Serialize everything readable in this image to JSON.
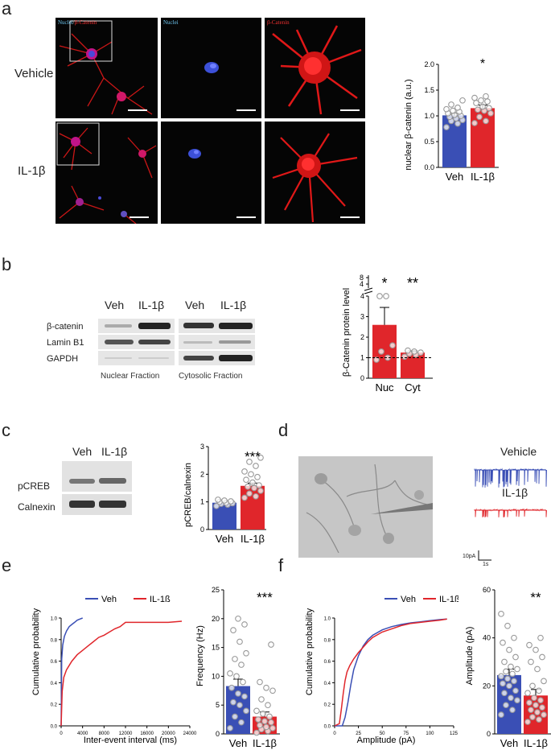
{
  "panels": {
    "a": "a",
    "b": "b",
    "c": "c",
    "d": "d",
    "e": "e",
    "f": "f"
  },
  "panel_a": {
    "row_labels": [
      "Vehicle",
      "IL-1β"
    ],
    "channel_labels": {
      "merge_nuclei": "Nuclei",
      "merge_sep": "/",
      "merge_cat": "β-Catenin",
      "nuclei": "Nuclei",
      "catenin": "β-Catenin"
    }
  },
  "panel_b": {
    "lane_labels": [
      "Veh",
      "IL-1β",
      "Veh",
      "IL-1β"
    ],
    "row_labels": [
      "β-catenin",
      "Lamin B1",
      "GAPDH"
    ],
    "fraction_labels": [
      "Nuclear Fraction",
      "Cytosolic Fraction"
    ]
  },
  "panel_c": {
    "lane_labels": [
      "Veh",
      "IL-1β"
    ],
    "row_labels": [
      "pCREB",
      "Calnexin"
    ]
  },
  "panel_d": {
    "trace_labels": [
      "Vehicle",
      "IL-1β"
    ],
    "scale_y": "10pA",
    "scale_x": "1s"
  },
  "colors": {
    "veh": "#3a4fb5",
    "il1b": "#e0262b",
    "red_signal": "#e01818",
    "blue_signal": "#3c50d8"
  },
  "chart_data": [
    {
      "id": "a_bar",
      "type": "bar",
      "title": "",
      "xlabel": "",
      "ylabel": "nuclear β-catenin (a.u.)",
      "categories": [
        "Veh",
        "IL-1β"
      ],
      "values": [
        1.01,
        1.15
      ],
      "errors": [
        0.04,
        0.06
      ],
      "ylim": [
        0,
        2.0
      ],
      "yticks": [
        "0.0",
        "0.5",
        "1.0",
        "1.5",
        "2.0"
      ],
      "significance": "*",
      "points": [
        [
          0.78,
          0.85,
          0.9,
          0.92,
          0.95,
          0.98,
          1.0,
          1.02,
          1.05,
          1.08,
          1.1,
          1.13,
          1.16,
          1.22,
          1.3
        ],
        [
          0.86,
          0.9,
          0.98,
          1.05,
          1.1,
          1.12,
          1.15,
          1.18,
          1.25,
          1.28,
          1.3,
          1.35,
          1.38
        ]
      ]
    },
    {
      "id": "b_bar",
      "type": "bar",
      "title": "",
      "xlabel": "",
      "ylabel": "β-Catenin protein level",
      "categories": [
        "Nuc",
        "Cyt"
      ],
      "values": [
        2.6,
        1.25
      ],
      "errors": [
        0.85,
        0.08
      ],
      "ylim": [
        0,
        4
      ],
      "yticks": [
        "0",
        "1",
        "2",
        "3",
        "4"
      ],
      "ybreak_ticks": [
        "8",
        "4"
      ],
      "reference_line": 1,
      "significance": [
        "*",
        "**"
      ],
      "points": [
        [
          0.9,
          1.0,
          1.3,
          1.6,
          4.2,
          4.5
        ],
        [
          1.05,
          1.15,
          1.2,
          1.25,
          1.3,
          1.35
        ]
      ]
    },
    {
      "id": "c_bar",
      "type": "bar",
      "title": "",
      "xlabel": "",
      "ylabel": "pCREB/calnexin",
      "categories": [
        "Veh",
        "IL-1β"
      ],
      "values": [
        0.97,
        1.58
      ],
      "errors": [
        0.03,
        0.1
      ],
      "ylim": [
        0,
        3
      ],
      "yticks": [
        "0",
        "1",
        "2",
        "3"
      ],
      "significance": "***",
      "points": [
        [
          0.85,
          0.9,
          0.93,
          0.95,
          0.97,
          1.0,
          1.02,
          1.05,
          1.08
        ],
        [
          1.15,
          1.2,
          1.3,
          1.4,
          1.5,
          1.55,
          1.6,
          1.7,
          1.8,
          1.9,
          2.0,
          2.1,
          2.3,
          2.45,
          2.6
        ]
      ]
    },
    {
      "id": "e_cum",
      "type": "line",
      "title": "",
      "xlabel": "Inter-event interval (ms)",
      "ylabel": "Cumulative probability",
      "xlim": [
        0,
        24000
      ],
      "ylim": [
        0,
        1.0
      ],
      "xticks": [
        "0",
        "4000",
        "8000",
        "12000",
        "16000",
        "20000",
        "24000"
      ],
      "yticks": [
        "0.0",
        "0.2",
        "0.4",
        "0.6",
        "0.8",
        "1.0"
      ],
      "series": [
        {
          "name": "Veh",
          "x": [
            0,
            100,
            300,
            600,
            1000,
            1500,
            2000,
            2500,
            3000,
            3500,
            4000
          ],
          "y": [
            0,
            0.62,
            0.75,
            0.83,
            0.88,
            0.92,
            0.94,
            0.96,
            0.98,
            0.99,
            1.0
          ]
        },
        {
          "name": "IL-1ß",
          "x": [
            0,
            200,
            500,
            1000,
            2000,
            3000,
            4000,
            5000,
            6000,
            7000,
            8000,
            9000,
            10000,
            11000,
            12000,
            13000,
            14000,
            16000,
            18000,
            20000,
            22500
          ],
          "y": [
            0,
            0.32,
            0.45,
            0.52,
            0.6,
            0.66,
            0.7,
            0.74,
            0.78,
            0.82,
            0.84,
            0.87,
            0.9,
            0.92,
            0.96,
            0.96,
            0.96,
            0.96,
            0.96,
            0.96,
            0.97
          ]
        }
      ]
    },
    {
      "id": "e_bar",
      "type": "bar",
      "title": "",
      "xlabel": "",
      "ylabel": "Frequency (Hz)",
      "categories": [
        "Veh",
        "IL-1β"
      ],
      "values": [
        8.3,
        3.0
      ],
      "errors": [
        1.2,
        0.8
      ],
      "ylim": [
        0,
        25
      ],
      "yticks": [
        "0",
        "5",
        "10",
        "15",
        "20",
        "25"
      ],
      "significance": "***",
      "points": [
        [
          1.0,
          2.0,
          3.0,
          4.0,
          5.0,
          5.5,
          6.5,
          7.0,
          8.0,
          9.0,
          10.0,
          10.5,
          12.0,
          13.0,
          14.0,
          16.0,
          18.0,
          19.0,
          20.0
        ],
        [
          0.2,
          0.5,
          0.8,
          1.0,
          1.2,
          1.5,
          2.0,
          2.2,
          2.5,
          3.0,
          3.5,
          4.0,
          5.0,
          6.0,
          7.5,
          8.0,
          9.0,
          15.5
        ]
      ]
    },
    {
      "id": "f_cum",
      "type": "line",
      "title": "",
      "xlabel": "Amplitude (pA)",
      "ylabel": "Cumulative probability",
      "xlim": [
        0,
        125
      ],
      "ylim": [
        0,
        1.0
      ],
      "xticks": [
        "0",
        "25",
        "50",
        "75",
        "100",
        "125"
      ],
      "yticks": [
        "0.0",
        "0.2",
        "0.4",
        "0.6",
        "0.8",
        "1.0"
      ],
      "series": [
        {
          "name": "Veh",
          "x": [
            0,
            8,
            11,
            14,
            17,
            20,
            25,
            30,
            35,
            40,
            50,
            60,
            70,
            80,
            90,
            100,
            110,
            118
          ],
          "y": [
            0,
            0,
            0.08,
            0.22,
            0.38,
            0.52,
            0.65,
            0.74,
            0.8,
            0.84,
            0.89,
            0.92,
            0.94,
            0.955,
            0.965,
            0.975,
            0.985,
            0.99
          ]
        },
        {
          "name": "IL-1ß",
          "x": [
            0,
            5,
            7,
            9,
            11,
            13,
            16,
            20,
            25,
            30,
            35,
            40,
            50,
            60,
            70,
            80,
            90,
            100,
            110,
            118
          ],
          "y": [
            0,
            0.02,
            0.15,
            0.3,
            0.42,
            0.5,
            0.56,
            0.62,
            0.68,
            0.73,
            0.78,
            0.82,
            0.87,
            0.9,
            0.93,
            0.95,
            0.96,
            0.97,
            0.98,
            0.99
          ]
        }
      ]
    },
    {
      "id": "f_bar",
      "type": "bar",
      "title": "",
      "xlabel": "",
      "ylabel": "Amplitude (pA)",
      "categories": [
        "Veh",
        "IL-1β"
      ],
      "values": [
        24.5,
        16.0
      ],
      "errors": [
        2.5,
        2.5
      ],
      "ylim": [
        0,
        60
      ],
      "yticks": [
        "0",
        "20",
        "40",
        "60"
      ],
      "significance": "**",
      "points": [
        [
          8,
          10,
          12,
          14,
          15,
          17,
          18,
          20,
          21,
          22,
          23,
          24,
          25,
          26,
          27,
          28,
          30,
          32,
          35,
          38,
          40,
          45,
          50
        ],
        [
          5,
          6,
          7,
          8,
          9,
          10,
          11,
          12,
          13,
          14,
          15,
          17,
          18,
          20,
          22,
          27,
          30,
          32,
          35,
          37,
          40
        ]
      ]
    }
  ]
}
